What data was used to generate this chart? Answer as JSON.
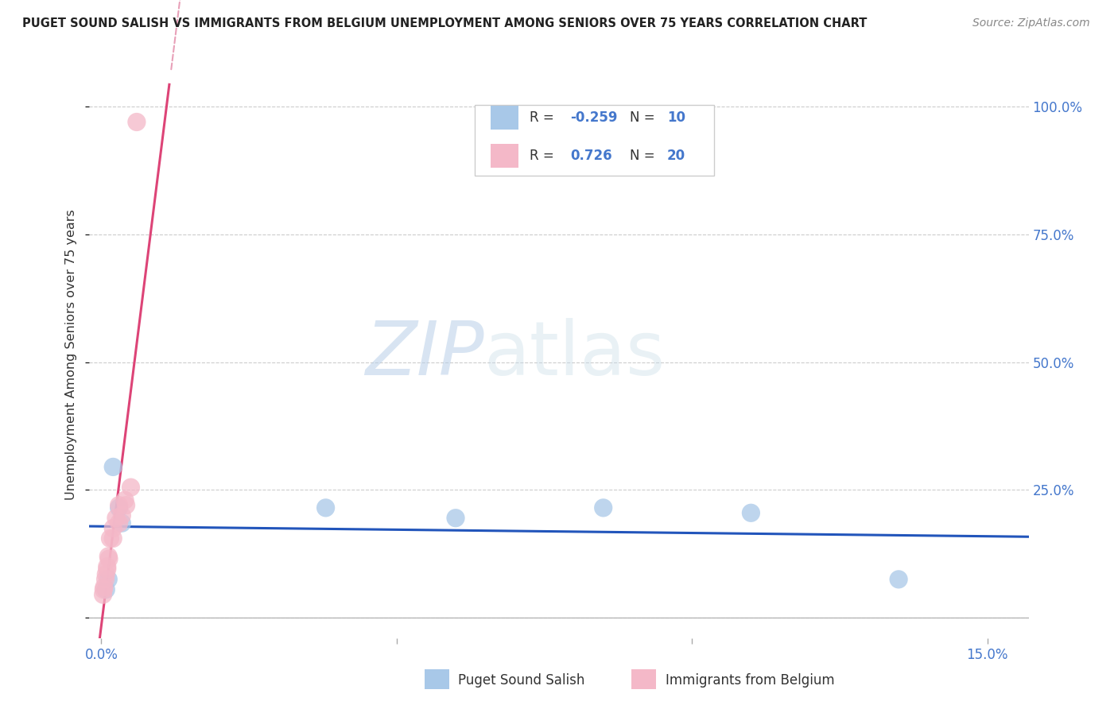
{
  "title": "PUGET SOUND SALISH VS IMMIGRANTS FROM BELGIUM UNEMPLOYMENT AMONG SENIORS OVER 75 YEARS CORRELATION CHART",
  "source": "Source: ZipAtlas.com",
  "ylabel": "Unemployment Among Seniors over 75 years",
  "blue_R": -0.259,
  "blue_N": 10,
  "pink_R": 0.726,
  "pink_N": 20,
  "blue_color": "#a8c8e8",
  "pink_color": "#f4b8c8",
  "blue_line_color": "#2255bb",
  "pink_line_color": "#dd4477",
  "blue_points_x": [
    0.0008,
    0.0012,
    0.002,
    0.003,
    0.0035,
    0.038,
    0.06,
    0.085,
    0.11,
    0.135
  ],
  "blue_points_y": [
    0.055,
    0.075,
    0.295,
    0.215,
    0.185,
    0.215,
    0.195,
    0.215,
    0.205,
    0.075
  ],
  "pink_points_x": [
    0.0003,
    0.0004,
    0.0005,
    0.0007,
    0.0008,
    0.001,
    0.001,
    0.0012,
    0.0013,
    0.0015,
    0.002,
    0.002,
    0.0025,
    0.003,
    0.003,
    0.0035,
    0.004,
    0.0042,
    0.005,
    0.006
  ],
  "pink_points_y": [
    0.045,
    0.055,
    0.06,
    0.075,
    0.085,
    0.095,
    0.1,
    0.12,
    0.115,
    0.155,
    0.155,
    0.175,
    0.195,
    0.185,
    0.22,
    0.2,
    0.23,
    0.22,
    0.255,
    0.97
  ],
  "xlim": [
    -0.002,
    0.157
  ],
  "ylim": [
    -0.04,
    1.07
  ],
  "x_ticks": [
    0.0,
    0.05,
    0.1,
    0.15
  ],
  "y_ticks": [
    0.0,
    0.25,
    0.5,
    0.75,
    1.0
  ],
  "watermark_zip": "ZIP",
  "watermark_atlas": "atlas",
  "background_color": "#ffffff",
  "grid_color": "#cccccc",
  "legend_label_blue": "Puget Sound Salish",
  "legend_label_pink": "Immigrants from Belgium"
}
